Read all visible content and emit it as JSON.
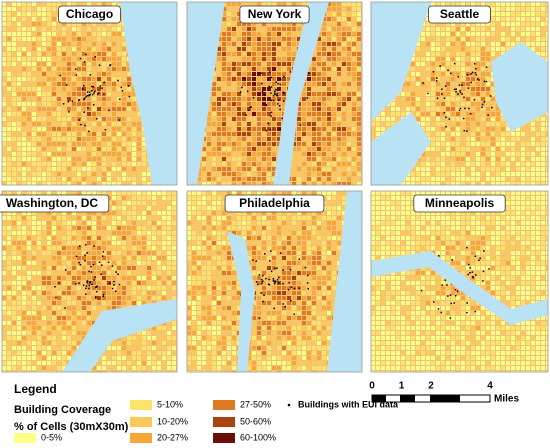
{
  "panels": [
    {
      "label": "Chicago"
    },
    {
      "label": "New York"
    },
    {
      "label": "Seattle"
    },
    {
      "label": "Washington, DC"
    },
    {
      "label": "Philadelphia"
    },
    {
      "label": "Minneapolis"
    }
  ],
  "legend": {
    "title": "Legend",
    "subtitle": "Building Coverage",
    "caption": "% of Cells (30mX30m)",
    "items": [
      {
        "label": "0-5%",
        "color": "#ffff88"
      },
      {
        "label": "5-10%",
        "color": "#fde36a"
      },
      {
        "label": "10-20%",
        "color": "#fbc95a"
      },
      {
        "label": "20-27%",
        "color": "#f7a738"
      },
      {
        "label": "27-50%",
        "color": "#de7a1f"
      },
      {
        "label": "50-60%",
        "color": "#a9430d"
      },
      {
        "label": "60-100%",
        "color": "#6b0e05"
      }
    ],
    "point": {
      "label": "Buildings with EUI data",
      "color": "#000000"
    }
  },
  "scale_bar": {
    "ticks": [
      "0",
      "1",
      "2",
      "4"
    ],
    "unit": "Miles"
  }
}
